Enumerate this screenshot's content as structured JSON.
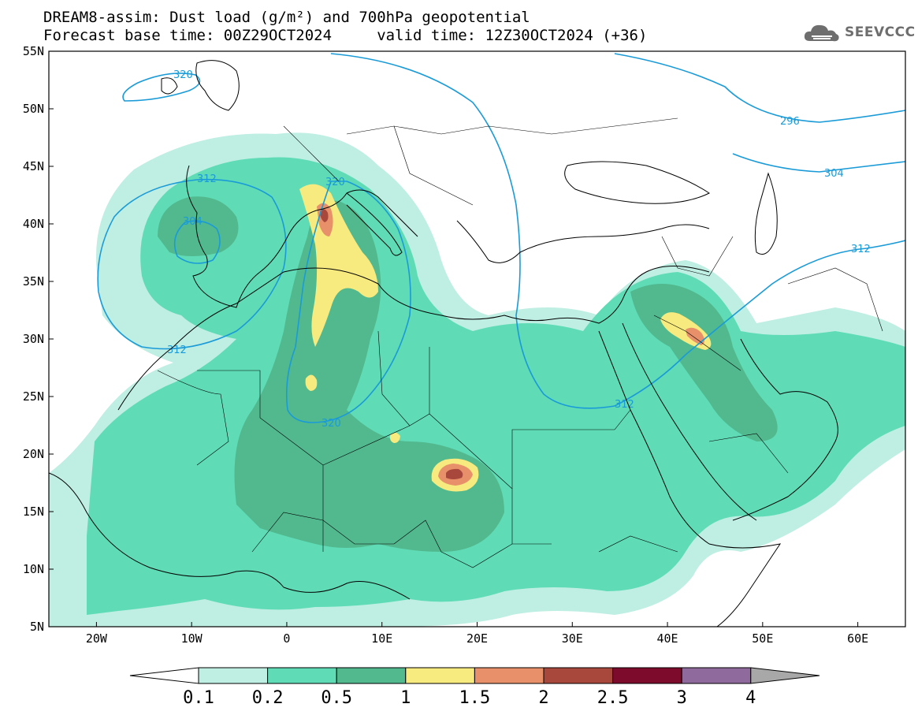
{
  "title": {
    "line1": "DREAM8-assim: Dust load (g/m²) and 700hPa geopotential",
    "line2": "Forecast base time: 00Z29OCT2024     valid time: 12Z30OCT2024 (+36)"
  },
  "logo": {
    "text": "SEEVCCC",
    "icon": "cloud-icon"
  },
  "map": {
    "lon_range": [
      -25,
      65
    ],
    "lat_range": [
      5,
      55
    ],
    "lat_ticks": [
      "55N",
      "50N",
      "45N",
      "40N",
      "35N",
      "30N",
      "25N",
      "20N",
      "15N",
      "10N",
      "5N"
    ],
    "lon_ticks": [
      "20W",
      "10W",
      "0",
      "10E",
      "20E",
      "30E",
      "40E",
      "50E",
      "60E"
    ]
  },
  "contour_labels": [
    "320",
    "296",
    "312",
    "304",
    "320",
    "312",
    "312",
    "304",
    "320",
    "312"
  ],
  "colorbar": {
    "labels": [
      "0.1",
      "0.2",
      "0.5",
      "1",
      "1.5",
      "2",
      "2.5",
      "3",
      "4"
    ],
    "colors": [
      "#ffffff",
      "#bfeee3",
      "#5fdcb6",
      "#52b98f",
      "#f7ea7e",
      "#e7906a",
      "#a8473c",
      "#7c0b2c",
      "#8f6a9d",
      "#a8a8a8"
    ]
  },
  "colors": {
    "dust_light": "#bfeee3",
    "dust_mid": "#5fdcb6",
    "dust_dark": "#52b98f",
    "dust_yellow": "#f7ea7e",
    "dust_orange": "#e7906a",
    "dust_red": "#a8473c",
    "contour": "#1a9bd8"
  }
}
